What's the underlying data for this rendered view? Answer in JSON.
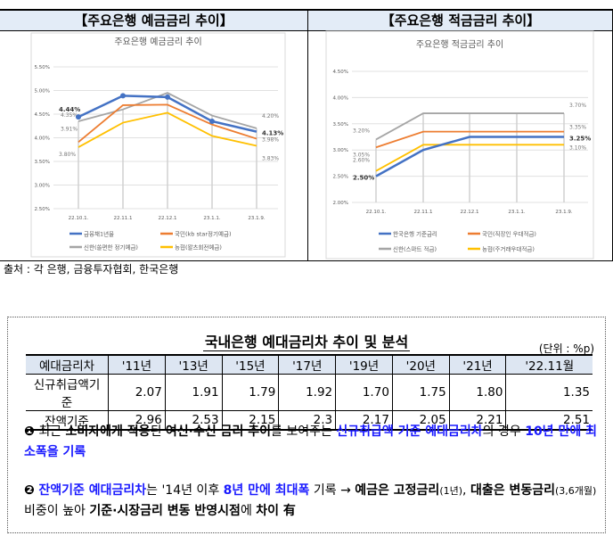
{
  "left_header": "【주요은행 예금금리 추이】",
  "right_header": "【주요은행 적금금리 추이】",
  "source": "출처 : 각 은행, 금융투자협회, 한국은행",
  "chart_data": [
    {
      "type": "line",
      "title": "주요은행 예금금리 추이",
      "categories": [
        "22.10.1.",
        "22.11.1",
        "22.12.1",
        "23.1.1.",
        "23.1.9."
      ],
      "ylim": [
        2.5,
        5.5
      ],
      "yticks": [
        "2.50%",
        "3.00%",
        "3.50%",
        "4.00%",
        "4.50%",
        "5.00%",
        "5.50%"
      ],
      "grid": true,
      "legend": "bottom",
      "series": [
        {
          "name": "금융채1년물",
          "color": "#4472c4",
          "values": [
            4.44,
            4.89,
            4.86,
            4.35,
            4.13
          ],
          "labels": [
            "4.44%",
            "4.13%"
          ],
          "markers": true
        },
        {
          "name": "국민(kb star정기예금)",
          "color": "#ed7d31",
          "values": [
            3.91,
            4.69,
            4.7,
            4.28,
            3.98
          ],
          "labels": [
            "3.91%",
            "3.98%"
          ]
        },
        {
          "name": "신한(쏠편한 정기예금)",
          "color": "#a5a5a5",
          "values": [
            4.35,
            4.6,
            4.95,
            4.47,
            4.2
          ],
          "labels": [
            "4.35%",
            "4.20%"
          ]
        },
        {
          "name": "농협(왈츠회전예금)",
          "color": "#ffc000",
          "values": [
            3.8,
            4.32,
            4.53,
            4.04,
            3.83
          ],
          "labels": [
            "3.80%",
            "3.83%"
          ]
        }
      ]
    },
    {
      "type": "line",
      "title": "주요은행 적금금리 추이",
      "categories": [
        "22.10.1.",
        "22.11.1",
        "22.12.1",
        "23.1.1.",
        "23.1.9."
      ],
      "ylim": [
        2.0,
        4.5
      ],
      "yticks": [
        "2.00%",
        "2.50%",
        "3.00%",
        "3.50%",
        "4.00%",
        "4.50%"
      ],
      "grid": true,
      "legend": "bottom",
      "series": [
        {
          "name": "한국은행 기준금리",
          "color": "#4472c4",
          "values": [
            2.5,
            3.0,
            3.25,
            3.25,
            3.25
          ],
          "labels": [
            "2.50%",
            "3.25%"
          ]
        },
        {
          "name": "국민(직장인 우대적금)",
          "color": "#ed7d31",
          "values": [
            3.05,
            3.35,
            3.35,
            3.35,
            3.35
          ],
          "labels": [
            "3.05%",
            "3.35%"
          ]
        },
        {
          "name": "신한(스마트 적금)",
          "color": "#a5a5a5",
          "values": [
            3.2,
            3.7,
            3.7,
            3.7,
            3.7
          ],
          "labels": [
            "3.20%",
            "3.70%"
          ]
        },
        {
          "name": "농협(주거래우대적금)",
          "color": "#ffc000",
          "values": [
            2.6,
            3.1,
            3.1,
            3.1,
            3.1
          ],
          "labels": [
            "2.60%",
            "3.10%"
          ]
        }
      ]
    }
  ],
  "analysis": {
    "title": "국내은행 예대금리차 추이 및 분석",
    "unit": "(단위 : %p)",
    "columns": [
      "예대금리차",
      "'11년",
      "'13년",
      "'15년",
      "'17년",
      "'19년",
      "'20년",
      "'21년",
      "'22.11월"
    ],
    "rows": [
      {
        "label": "신규취급액기준",
        "values": [
          "2.07",
          "1.91",
          "1.79",
          "1.92",
          "1.70",
          "1.75",
          "1.80",
          "1.35"
        ]
      },
      {
        "label": "잔액기준",
        "values": [
          "2.96",
          "2.53",
          "2.15",
          "2.3",
          "2.17",
          "2.05",
          "2.21",
          "2.51"
        ]
      }
    ],
    "p1": {
      "bullet": "❶",
      "a": "최근 ",
      "b": "소비자에게 적용",
      "c": "된 ",
      "d": "여신·수신 금리 추이",
      "e": "를 보여주는 ",
      "f": "신규취급액 기준 예대금리차",
      "g": "의 경우 ",
      "h": "10년 만에 최소폭을 기록"
    },
    "p2": {
      "bullet": "❷",
      "a": "잔액기준 예대금리차",
      "b": "는 '14년 이후 ",
      "c": "8년 만에 최대폭",
      "d": " 기록 → ",
      "e": "예금은 고정금리",
      "f": "(1년)",
      "g": ", ",
      "h": "대출은 변동금리",
      "i": "(3,6개월)",
      "j": " 비중이 높아 ",
      "k": "기준·시장금리 변동 반영시점",
      "l": "에 ",
      "m": "차이 有"
    }
  }
}
